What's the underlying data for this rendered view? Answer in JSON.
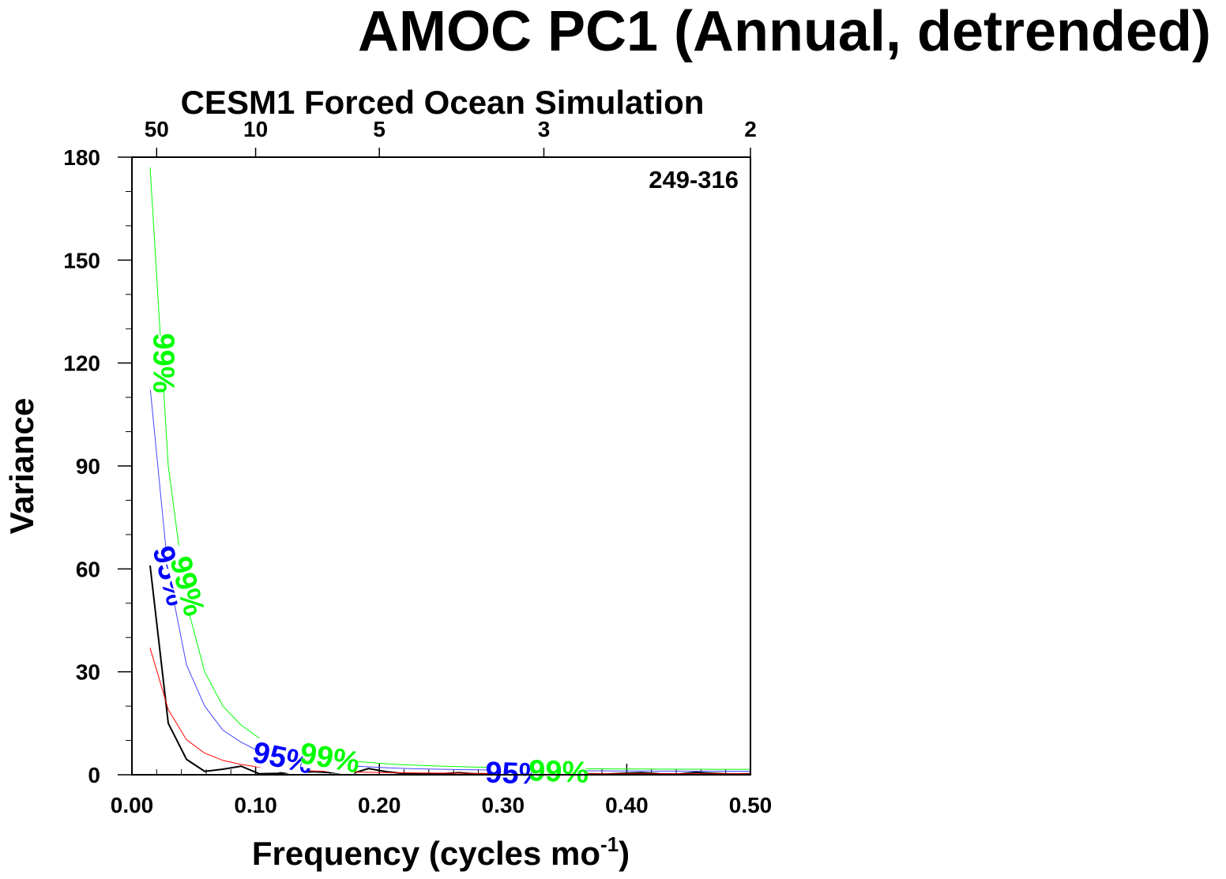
{
  "chart_data": {
    "type": "line",
    "title": "AMOC PC1 (Annual, detrended)",
    "subtitle": "CESM1 Forced Ocean Simulation",
    "xlabel": "Frequency (cycles mo",
    "xlabel_sup": "-1",
    "xlabel_close": ")",
    "ylabel": "Variance",
    "annotation": "249-316",
    "xlim": [
      0,
      0.5
    ],
    "ylim": [
      0,
      180
    ],
    "x_ticks": [
      "0.00",
      "0.10",
      "0.20",
      "0.30",
      "0.40",
      "0.50"
    ],
    "y_ticks": [
      "0",
      "30",
      "60",
      "90",
      "120",
      "150",
      "180"
    ],
    "top_axis_ticks": [
      {
        "label": "50",
        "freq": 0.02
      },
      {
        "label": "10",
        "freq": 0.1
      },
      {
        "label": "5",
        "freq": 0.2
      },
      {
        "label": "3",
        "freq": 0.333
      },
      {
        "label": "2",
        "freq": 0.5
      }
    ],
    "grid": false,
    "series": [
      {
        "color": "#000000",
        "x": [
          0.0147,
          0.0294,
          0.0441,
          0.0588,
          0.0735,
          0.0882,
          0.1029,
          0.1176,
          0.1324,
          0.1471,
          0.1618,
          0.1765,
          0.1912,
          0.2059,
          0.2206,
          0.2353,
          0.25,
          0.2647,
          0.2794,
          0.2941,
          0.3088,
          0.3235,
          0.3382,
          0.3529,
          0.3676,
          0.3824,
          0.3971,
          0.4118,
          0.4265,
          0.4412,
          0.4559,
          0.4706,
          0.4853,
          0.5
        ],
        "y": [
          61,
          15,
          4.5,
          1,
          1.6,
          2.5,
          0.3,
          0.4,
          0.7,
          0.9,
          0.6,
          0.2,
          1.8,
          0.9,
          0.3,
          0.2,
          0.3,
          0.6,
          0.2,
          0.3,
          0.4,
          0.3,
          0.3,
          0.5,
          0.3,
          0.2,
          0.4,
          0.6,
          0.3,
          0.2,
          0.7,
          0.4,
          0.2,
          0.3
        ]
      },
      {
        "color": "#ff0000",
        "x": [
          0.0147,
          0.0294,
          0.0441,
          0.0588,
          0.0735,
          0.0882,
          0.1029,
          0.1176,
          0.1324,
          0.1471,
          0.1618,
          0.1765,
          0.1912,
          0.2059,
          0.2206,
          0.2353,
          0.25,
          0.2647,
          0.2794,
          0.2941,
          0.3088,
          0.3235,
          0.3382,
          0.3529,
          0.3676,
          0.3824,
          0.3971,
          0.4118,
          0.4265,
          0.4412,
          0.4559,
          0.4706,
          0.4853,
          0.5
        ],
        "y": [
          37,
          19,
          10.2,
          6.3,
          4.2,
          3.0,
          2.2,
          1.7,
          1.35,
          1.1,
          0.95,
          0.82,
          0.72,
          0.64,
          0.58,
          0.52,
          0.48,
          0.44,
          0.41,
          0.39,
          0.37,
          0.35,
          0.34,
          0.33,
          0.32,
          0.31,
          0.3,
          0.3,
          0.29,
          0.29,
          0.28,
          0.28,
          0.28,
          0.28
        ]
      },
      {
        "color": "#4444ff",
        "label": "95%",
        "x": [
          0.0147,
          0.0294,
          0.0441,
          0.0588,
          0.0735,
          0.0882,
          0.1029,
          0.1176,
          0.1324,
          0.1471,
          0.1618,
          0.1765,
          0.1912,
          0.2059,
          0.2206,
          0.2353,
          0.25,
          0.2647,
          0.2794,
          0.2941,
          0.3088,
          0.3235,
          0.3382,
          0.3529,
          0.3676,
          0.3824,
          0.3971,
          0.4118,
          0.4265,
          0.4412,
          0.4559,
          0.4706,
          0.4853,
          0.5
        ],
        "y": [
          113,
          59,
          32,
          20,
          13,
          9.5,
          6.8,
          5.3,
          4.2,
          3.5,
          3.0,
          2.6,
          2.3,
          2.05,
          1.85,
          1.7,
          1.6,
          1.5,
          1.42,
          1.35,
          1.3,
          1.25,
          1.2,
          1.17,
          1.14,
          1.12,
          1.1,
          1.08,
          1.06,
          1.05,
          1.04,
          1.03,
          1.02,
          1.02
        ]
      },
      {
        "color": "#00ff00",
        "label": "99%",
        "x": [
          0.0147,
          0.0294,
          0.0441,
          0.0588,
          0.0735,
          0.0882,
          0.1029,
          0.1176,
          0.1324,
          0.1471,
          0.1618,
          0.1765,
          0.1912,
          0.2059,
          0.2206,
          0.2353,
          0.25,
          0.2647,
          0.2794,
          0.2941,
          0.3088,
          0.3235,
          0.3382,
          0.3529,
          0.3676,
          0.3824,
          0.3971,
          0.4118,
          0.4265,
          0.4412,
          0.4559,
          0.4706,
          0.4853,
          0.5
        ],
        "y": [
          177,
          90,
          50,
          30,
          20,
          14.5,
          10.7,
          8.3,
          6.6,
          5.5,
          4.7,
          4.1,
          3.6,
          3.2,
          2.9,
          2.7,
          2.5,
          2.35,
          2.22,
          2.1,
          2.0,
          1.92,
          1.85,
          1.8,
          1.75,
          1.72,
          1.68,
          1.65,
          1.63,
          1.61,
          1.6,
          1.59,
          1.58,
          1.58
        ]
      }
    ],
    "curve_labels": [
      {
        "text": "99%",
        "color": "#00ff00",
        "x": 0.026,
        "y": 120,
        "angle": 90
      },
      {
        "text": "95%",
        "color": "#0000ff",
        "x": 0.031,
        "y": 58,
        "angle": 75
      },
      {
        "text": "99%",
        "color": "#00ff00",
        "x": 0.045,
        "y": 55,
        "angle": 75
      },
      {
        "text": "95%",
        "color": "#0000ff",
        "x": 0.122,
        "y": 5,
        "angle": 12
      },
      {
        "text": "99%",
        "color": "#00ff00",
        "x": 0.16,
        "y": 5,
        "angle": 10
      },
      {
        "text": "95%",
        "color": "#0000ff",
        "x": 0.31,
        "y": 0.5,
        "angle": 2
      },
      {
        "text": "99%",
        "color": "#00ff00",
        "x": 0.345,
        "y": 1,
        "angle": 2
      }
    ]
  }
}
